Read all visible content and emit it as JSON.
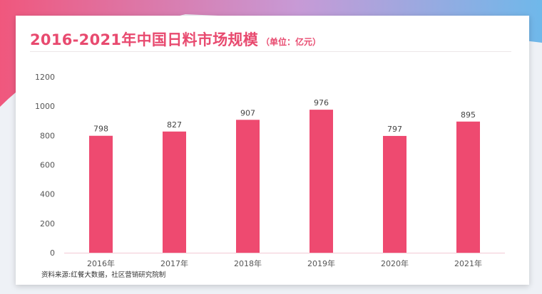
{
  "colors": {
    "accent": "#e84a6f",
    "bar": "#ee4a70",
    "axis_text": "#555555",
    "label_text": "#444444"
  },
  "header": {
    "title": "2016-2021年中国日料市场规模",
    "unit": "（单位：亿元）"
  },
  "footer": {
    "source": "资料来源:红餐大数据，社区营销研究院制"
  },
  "chart_data": {
    "type": "bar",
    "title": "2016-2021年中国日料市场规模",
    "xlabel": "",
    "ylabel": "",
    "categories": [
      "2016年",
      "2017年",
      "2018年",
      "2019年",
      "2020年",
      "2021年"
    ],
    "values": [
      798,
      827,
      907,
      976,
      797,
      895
    ],
    "yticks": [
      0,
      200,
      400,
      600,
      800,
      1000,
      1200
    ],
    "ylim": [
      0,
      1200
    ],
    "grid": false,
    "legend": "none"
  }
}
